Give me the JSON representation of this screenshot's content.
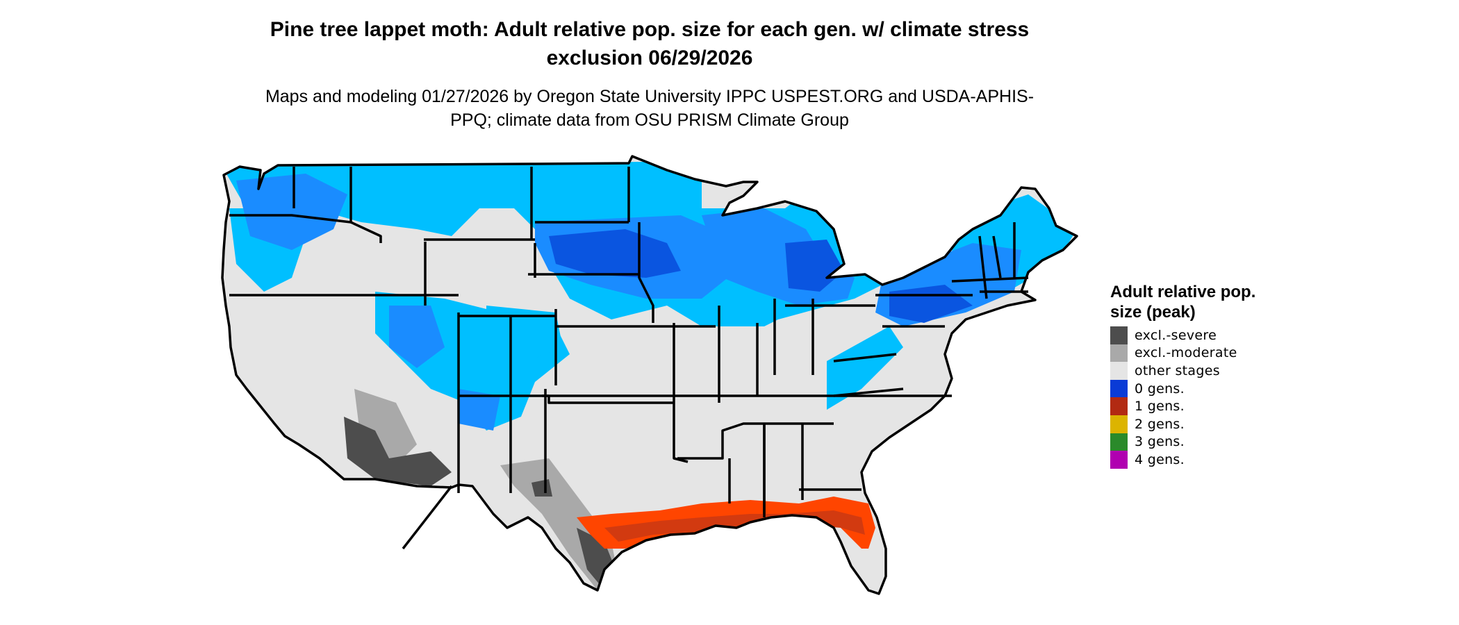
{
  "title": "Pine tree lappet moth: Adult relative pop. size for each gen. w/ climate stress exclusion 06/29/2026",
  "subtitle": "Maps and modeling 01/27/2026 by Oregon State University IPPC USPEST.ORG and USDA-APHIS-PPQ; climate data from OSU PRISM Climate Group",
  "legend": {
    "title": "Adult relative pop. size (peak)",
    "items": [
      {
        "label": "excl.-severe",
        "color": "#4d4d4d"
      },
      {
        "label": "excl.-moderate",
        "color": "#a9a9a9"
      },
      {
        "label": "other stages",
        "color": "#e5e5e5"
      },
      {
        "label": "0 gens.",
        "color": "#0a3bd6"
      },
      {
        "label": "1 gens.",
        "color": "#b22a12"
      },
      {
        "label": "2 gens.",
        "color": "#dcb400"
      },
      {
        "label": "3 gens.",
        "color": "#2a8a2a"
      },
      {
        "label": "4 gens.",
        "color": "#b000b0"
      }
    ]
  },
  "map_colors": {
    "land": "#e5e5e5",
    "light_blue": "#00bfff",
    "mid_blue": "#1a8cff",
    "dark_blue": "#0a55e0",
    "orange": "#ff4500",
    "dark_orange": "#d23a10",
    "excl_severe": "#4d4d4d",
    "excl_moderate": "#a9a9a9",
    "border": "#000000"
  }
}
